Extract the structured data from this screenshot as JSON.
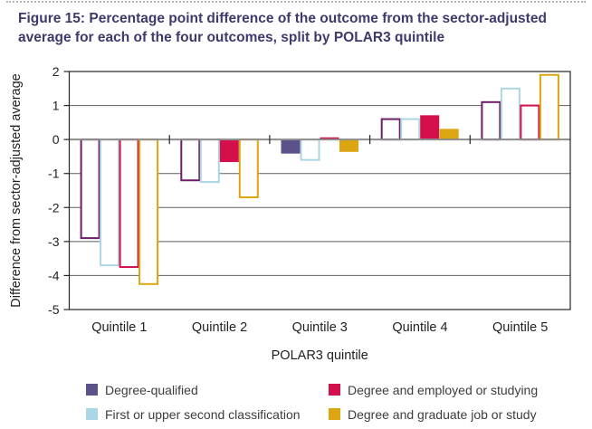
{
  "figure": {
    "title": "Figure 15: Percentage point difference of the outcome from the sector-adjusted average for each of the four outcomes, split by POLAR3 quintile"
  },
  "chart_data": {
    "type": "bar",
    "title": "",
    "categories": [
      "Quintile 1",
      "Quintile 2",
      "Quintile 3",
      "Quintile 4",
      "Quintile 5"
    ],
    "xlabel": "POLAR3 quintile",
    "ylabel": "Difference from sector-adjusted average",
    "ylim": [
      -5,
      2
    ],
    "yticks": [
      2,
      1,
      0,
      -1,
      -2,
      -3,
      -4,
      -5
    ],
    "grid": true,
    "legend_position": "bottom",
    "series": [
      {
        "name": "Degree-qualified",
        "color": "#5c528a",
        "outline_color": "#701c68",
        "values": [
          -2.9,
          -1.2,
          -0.4,
          0.6,
          1.1
        ],
        "bar_fill": [
          "outline",
          "outline",
          "solid",
          "outline",
          "outline"
        ]
      },
      {
        "name": "First or upper second classification",
        "color": "#abd6e3",
        "outline_color": "#abd6e3",
        "values": [
          -3.7,
          -1.25,
          -0.6,
          0.6,
          1.5
        ],
        "bar_fill": [
          "outline",
          "outline",
          "outline",
          "outline",
          "outline"
        ]
      },
      {
        "name": "Degree and employed or studying",
        "color": "#d40f4c",
        "outline_color": "#d40f4c",
        "values": [
          -3.75,
          -0.65,
          0.05,
          0.7,
          1.0
        ],
        "bar_fill": [
          "outline",
          "solid",
          "solid",
          "solid",
          "outline"
        ]
      },
      {
        "name": "Degree and graduate job or study",
        "color": "#dba612",
        "outline_color": "#dba612",
        "values": [
          -4.25,
          -1.7,
          -0.35,
          0.3,
          1.9
        ],
        "bar_fill": [
          "outline",
          "outline",
          "solid",
          "solid",
          "outline"
        ]
      }
    ],
    "colors": {
      "title_text": "#3e3a6b",
      "axis_text": "#1f1f1f",
      "gridline": "#5e5e5e",
      "zero_line": "#8d8d8d",
      "frame": "#262626",
      "outlined_bar_fill": "#ffffff"
    }
  }
}
